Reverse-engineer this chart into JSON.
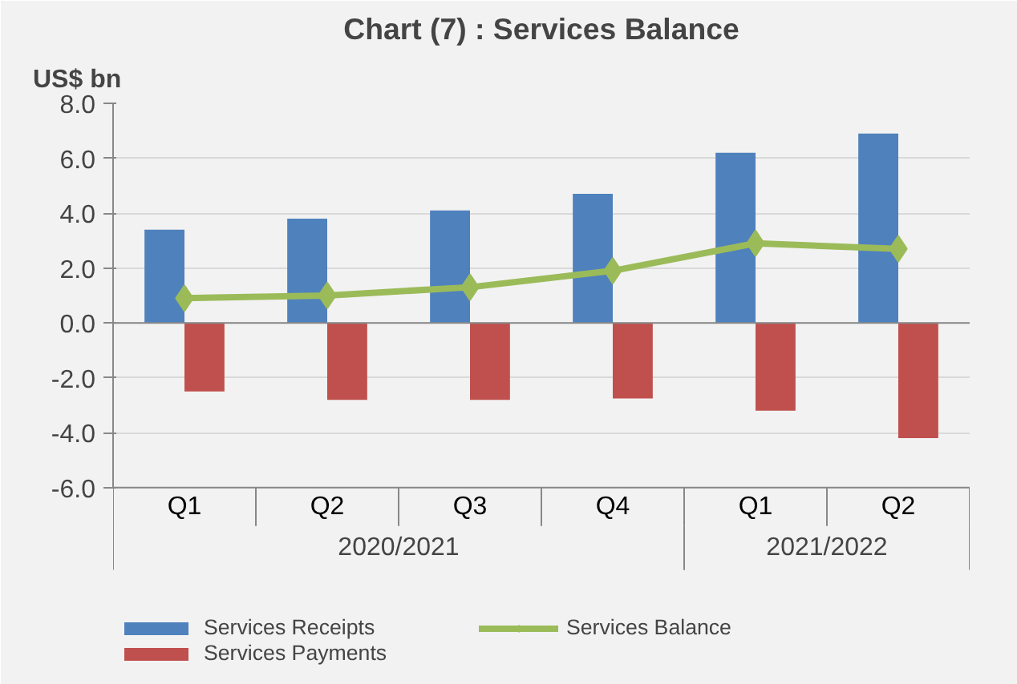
{
  "chart_data": {
    "type": "bar",
    "title": "Chart (7) : Services Balance",
    "ylabel": "US$ bn",
    "categories": [
      "Q1",
      "Q2",
      "Q3",
      "Q4",
      "Q1",
      "Q2"
    ],
    "series": [
      {
        "name": "Services Receipts",
        "color": "#4f81bd",
        "values": [
          3.4,
          3.8,
          4.1,
          4.7,
          6.2,
          6.9
        ]
      },
      {
        "name": "Services Payments",
        "color": "#c0504d",
        "values": [
          -2.5,
          -2.8,
          -2.8,
          -2.75,
          -3.2,
          -4.2
        ]
      },
      {
        "name": "Services Balance",
        "type": "line",
        "color": "#9bbb59",
        "marker": "diamond",
        "values": [
          0.9,
          1.0,
          1.3,
          1.9,
          2.9,
          2.7
        ]
      }
    ],
    "annotations": [
      "2020/2021",
      "2021/2022"
    ],
    "ylim": [
      -6,
      8
    ],
    "yticks": [
      {
        "value": -6,
        "label": "-6.0"
      },
      {
        "value": -4,
        "label": "-4.0"
      },
      {
        "value": -2,
        "label": "-2.0"
      },
      {
        "value": 0,
        "label": "0.0"
      },
      {
        "value": 2,
        "label": "2.0"
      },
      {
        "value": 4,
        "label": "4.0"
      },
      {
        "value": 6,
        "label": "6.0"
      },
      {
        "value": 8,
        "label": "8.0"
      }
    ],
    "grid": "y",
    "legend": "bottom"
  }
}
